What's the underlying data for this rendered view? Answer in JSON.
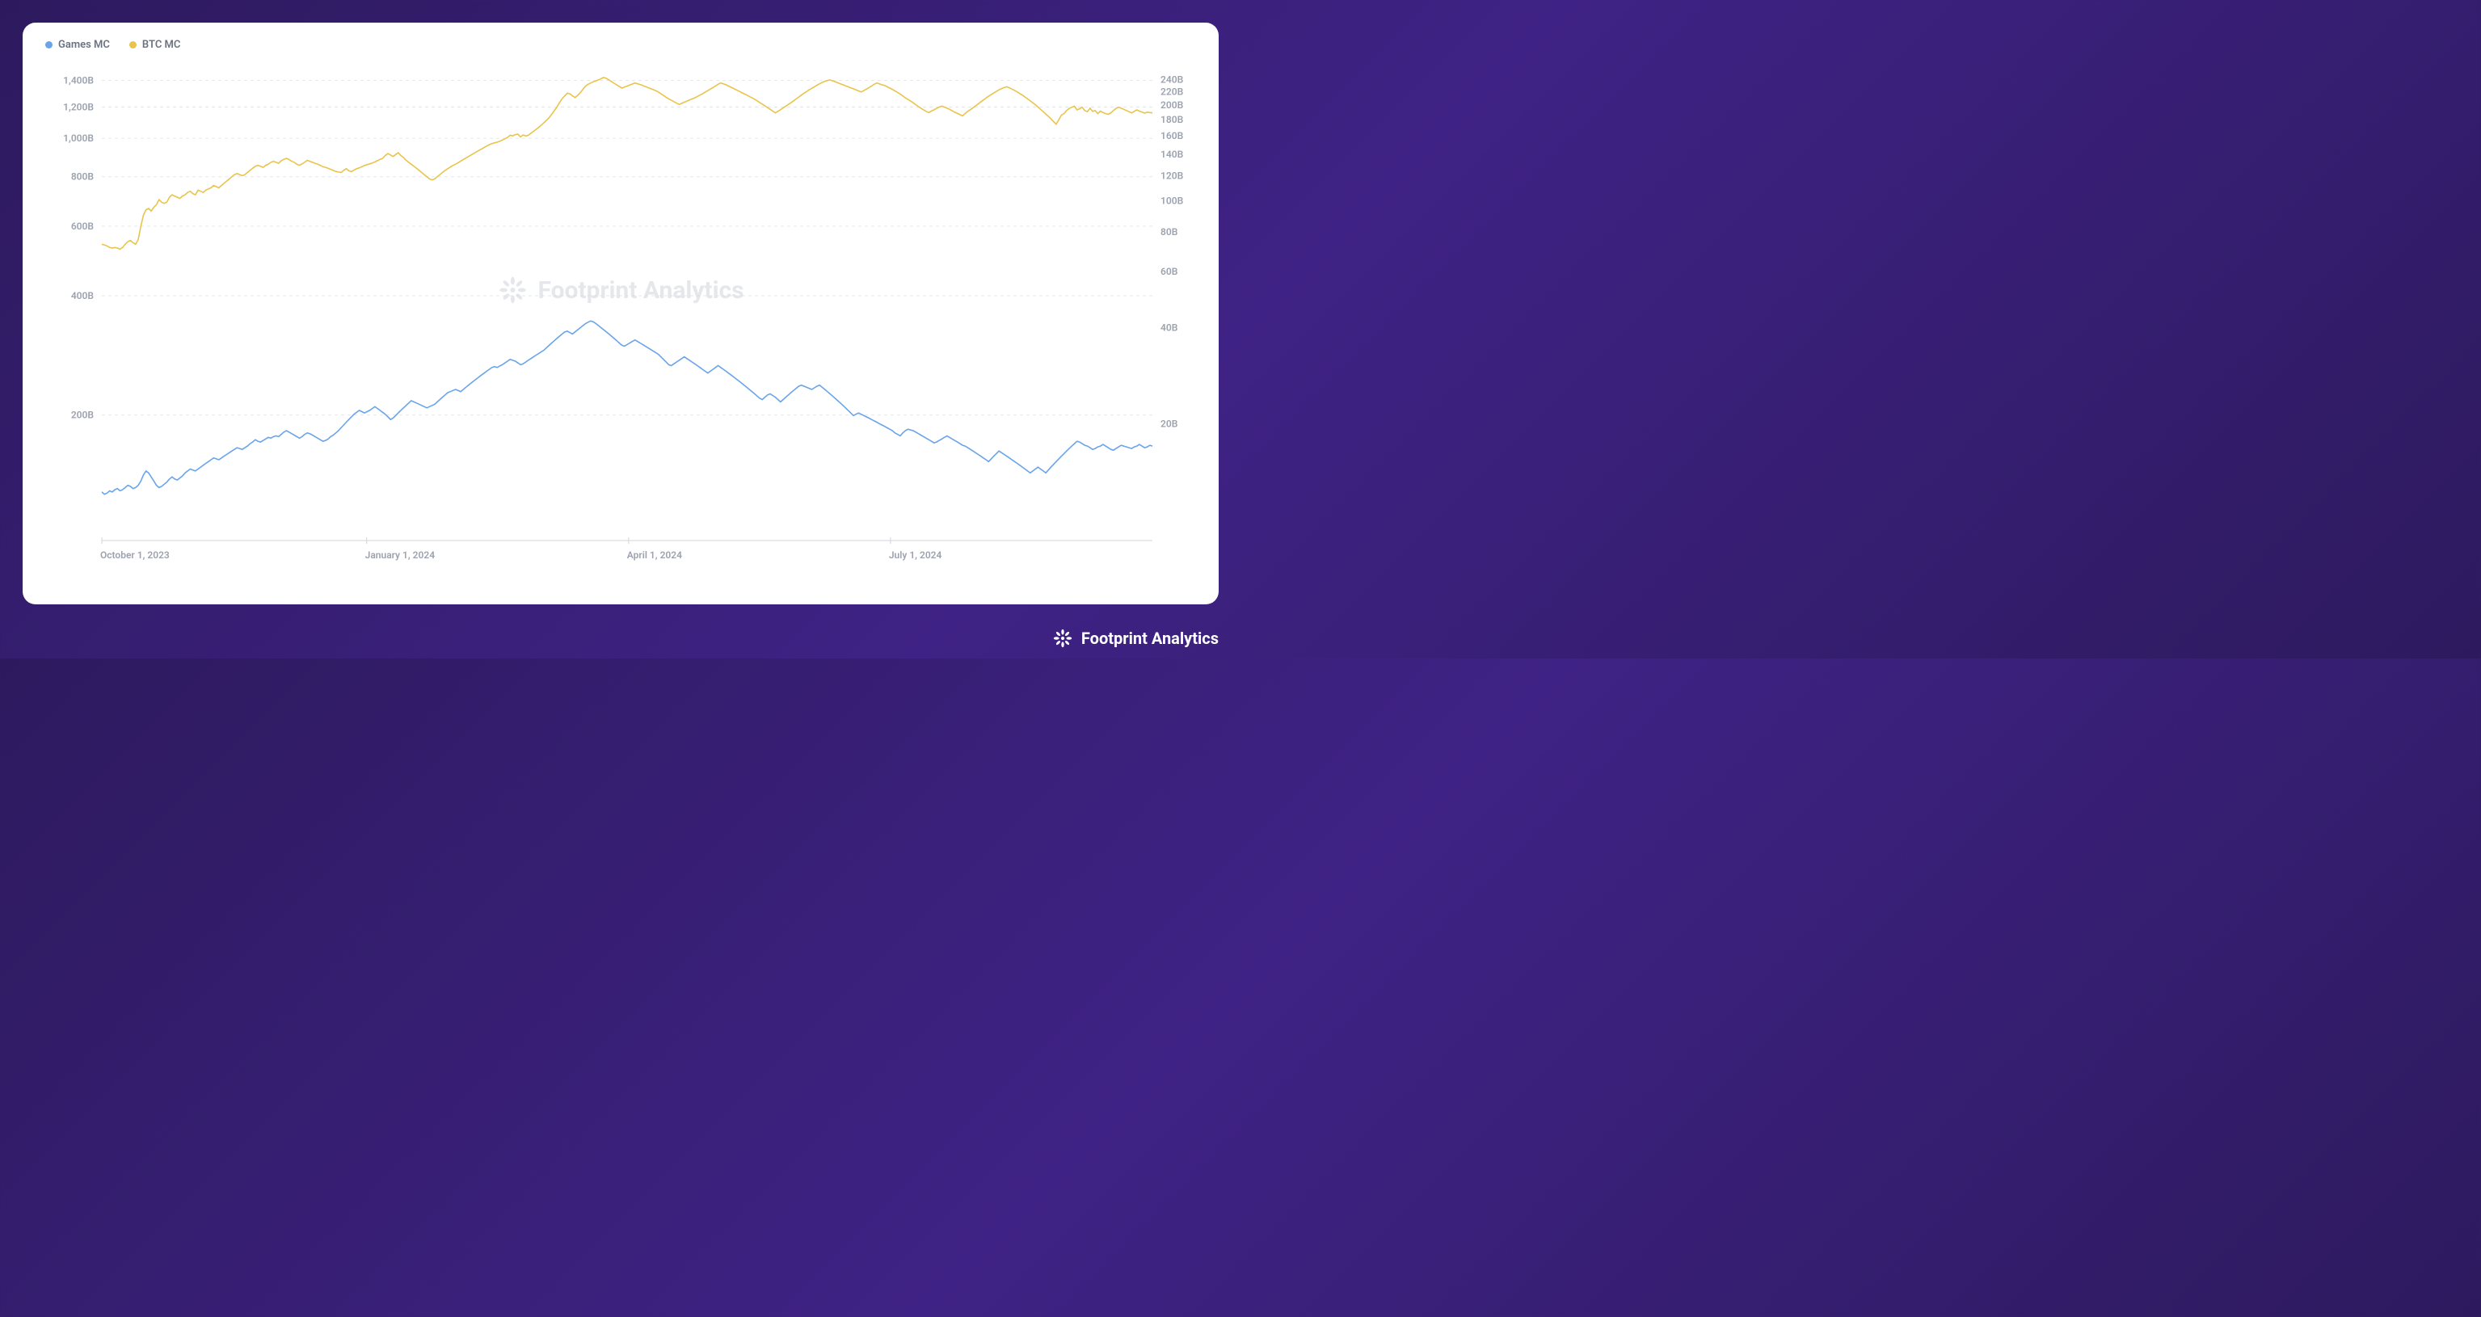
{
  "brand": {
    "name": "Footprint Analytics",
    "logo_color": "#ffffff",
    "watermark_color": "#d1d5db"
  },
  "chart": {
    "type": "line-dual-axis",
    "background_color": "#ffffff",
    "grid_color": "#e5e7eb",
    "axis_color": "#d1d5db",
    "label_color": "#9ca3af",
    "label_fontsize": 12,
    "legend": [
      {
        "label": "Games MC",
        "color": "#6aa4ea"
      },
      {
        "label": "BTC MC",
        "color": "#e9c44c"
      }
    ],
    "left_axis": {
      "scale": "log",
      "min_value": 100,
      "max_value": 1500,
      "ticks": [
        {
          "value": 200,
          "label": "200B"
        },
        {
          "value": 400,
          "label": "400B"
        },
        {
          "value": 600,
          "label": "600B"
        },
        {
          "value": 800,
          "label": "800B"
        },
        {
          "value": 1000,
          "label": "1,000B"
        },
        {
          "value": 1200,
          "label": "1,200B"
        },
        {
          "value": 1400,
          "label": "1,400B"
        }
      ]
    },
    "right_axis": {
      "scale": "log",
      "min_value": 9,
      "max_value": 260,
      "ticks": [
        {
          "value": 20,
          "label": "20B"
        },
        {
          "value": 40,
          "label": "40B"
        },
        {
          "value": 60,
          "label": "60B"
        },
        {
          "value": 80,
          "label": "80B"
        },
        {
          "value": 100,
          "label": "100B"
        },
        {
          "value": 120,
          "label": "120B"
        },
        {
          "value": 140,
          "label": "140B"
        },
        {
          "value": 160,
          "label": "160B"
        },
        {
          "value": 180,
          "label": "180B"
        },
        {
          "value": 200,
          "label": "200B"
        },
        {
          "value": 220,
          "label": "220B"
        },
        {
          "value": 240,
          "label": "240B"
        }
      ]
    },
    "x_axis": {
      "domain": [
        0,
        365
      ],
      "ticks": [
        {
          "t": 0,
          "label": "October 1, 2023"
        },
        {
          "t": 92,
          "label": "January 1, 2024"
        },
        {
          "t": 183,
          "label": "April 1, 2024"
        },
        {
          "t": 274,
          "label": "July 1, 2024"
        }
      ]
    },
    "series": {
      "btc_mc": {
        "axis": "left",
        "color": "#e9c44c",
        "line_width": 1.6,
        "values": [
          540,
          538,
          535,
          530,
          528,
          530,
          528,
          525,
          530,
          540,
          548,
          552,
          545,
          540,
          555,
          600,
          640,
          660,
          665,
          655,
          670,
          680,
          700,
          690,
          685,
          690,
          710,
          720,
          715,
          710,
          705,
          715,
          720,
          730,
          735,
          725,
          720,
          740,
          735,
          730,
          740,
          745,
          750,
          760,
          755,
          750,
          760,
          770,
          780,
          790,
          800,
          810,
          815,
          810,
          805,
          810,
          820,
          830,
          840,
          850,
          855,
          850,
          845,
          855,
          860,
          870,
          875,
          870,
          865,
          878,
          885,
          890,
          884,
          875,
          870,
          860,
          855,
          862,
          870,
          880,
          875,
          870,
          865,
          860,
          855,
          848,
          845,
          840,
          835,
          830,
          825,
          822,
          820,
          830,
          838,
          828,
          824,
          832,
          838,
          842,
          848,
          854,
          858,
          862,
          866,
          872,
          878,
          885,
          890,
          905,
          915,
          908,
          900,
          910,
          920,
          905,
          895,
          880,
          870,
          860,
          850,
          840,
          830,
          820,
          810,
          800,
          790,
          785,
          790,
          800,
          810,
          820,
          830,
          838,
          846,
          854,
          860,
          868,
          876,
          884,
          892,
          900,
          908,
          916,
          924,
          932,
          940,
          948,
          956,
          964,
          970,
          974,
          978,
          983,
          990,
          998,
          1005,
          1018,
          1015,
          1022,
          1025,
          1008,
          1020,
          1014,
          1018,
          1030,
          1042,
          1054,
          1066,
          1080,
          1095,
          1110,
          1128,
          1150,
          1175,
          1200,
          1230,
          1260,
          1280,
          1300,
          1296,
          1280,
          1268,
          1285,
          1305,
          1330,
          1355,
          1370,
          1380,
          1390,
          1397,
          1406,
          1415,
          1425,
          1418,
          1405,
          1392,
          1378,
          1365,
          1352,
          1340,
          1348,
          1356,
          1364,
          1372,
          1380,
          1374,
          1368,
          1360,
          1352,
          1344,
          1336,
          1328,
          1320,
          1310,
          1296,
          1284,
          1270,
          1258,
          1248,
          1238,
          1228,
          1218,
          1226,
          1234,
          1242,
          1250,
          1258,
          1266,
          1276,
          1286,
          1296,
          1308,
          1320,
          1332,
          1344,
          1356,
          1370,
          1380,
          1374,
          1366,
          1356,
          1346,
          1336,
          1326,
          1316,
          1306,
          1296,
          1286,
          1276,
          1266,
          1256,
          1244,
          1232,
          1220,
          1208,
          1196,
          1184,
          1172,
          1160,
          1170,
          1182,
          1194,
          1206,
          1218,
          1230,
          1244,
          1258,
          1272,
          1286,
          1300,
          1312,
          1326,
          1338,
          1350,
          1362,
          1374,
          1384,
          1394,
          1400,
          1405,
          1398,
          1390,
          1382,
          1374,
          1366,
          1358,
          1350,
          1342,
          1334,
          1326,
          1318,
          1310,
          1320,
          1332,
          1344,
          1356,
          1370,
          1380,
          1374,
          1366,
          1360,
          1350,
          1340,
          1330,
          1318,
          1306,
          1294,
          1280,
          1266,
          1254,
          1242,
          1230,
          1216,
          1204,
          1192,
          1180,
          1170,
          1162,
          1172,
          1180,
          1190,
          1200,
          1206,
          1200,
          1192,
          1184,
          1174,
          1164,
          1156,
          1148,
          1140,
          1156,
          1170,
          1182,
          1195,
          1208,
          1222,
          1236,
          1250,
          1264,
          1278,
          1290,
          1302,
          1314,
          1326,
          1336,
          1344,
          1350,
          1342,
          1332,
          1322,
          1310,
          1298,
          1286,
          1272,
          1258,
          1244,
          1230,
          1215,
          1200,
          1184,
          1168,
          1152,
          1136,
          1120,
          1102,
          1086,
          1115,
          1145,
          1155,
          1176,
          1190,
          1198,
          1206,
          1180,
          1188,
          1198,
          1176,
          1168,
          1192,
          1170,
          1175,
          1155,
          1172,
          1162,
          1155,
          1150,
          1160,
          1175,
          1190,
          1198,
          1192,
          1184,
          1176,
          1168,
          1160,
          1170,
          1180,
          1172,
          1165,
          1158,
          1165,
          1162,
          1160
        ]
      },
      "games_mc": {
        "axis": "right",
        "color": "#6aa4ea",
        "line_width": 1.6,
        "values": [
          12.2,
          12.0,
          12.1,
          12.3,
          12.2,
          12.4,
          12.5,
          12.3,
          12.4,
          12.6,
          12.8,
          12.7,
          12.5,
          12.6,
          12.8,
          13.2,
          13.8,
          14.2,
          14.0,
          13.6,
          13.2,
          12.8,
          12.6,
          12.7,
          12.9,
          13.1,
          13.4,
          13.6,
          13.4,
          13.3,
          13.5,
          13.7,
          14.0,
          14.2,
          14.4,
          14.3,
          14.2,
          14.4,
          14.6,
          14.8,
          15.0,
          15.2,
          15.4,
          15.6,
          15.5,
          15.4,
          15.6,
          15.8,
          16.0,
          16.2,
          16.4,
          16.6,
          16.8,
          16.7,
          16.6,
          16.8,
          17.0,
          17.3,
          17.5,
          17.8,
          17.6,
          17.5,
          17.7,
          17.9,
          18.1,
          18.0,
          18.2,
          18.3,
          18.2,
          18.5,
          18.8,
          19.0,
          18.8,
          18.6,
          18.4,
          18.2,
          18.0,
          18.2,
          18.5,
          18.7,
          18.6,
          18.4,
          18.2,
          18.0,
          17.8,
          17.6,
          17.7,
          17.9,
          18.2,
          18.4,
          18.7,
          19.0,
          19.4,
          19.8,
          20.2,
          20.6,
          21.0,
          21.4,
          21.7,
          22.0,
          21.8,
          21.6,
          21.8,
          22.0,
          22.3,
          22.6,
          22.3,
          22.0,
          21.7,
          21.4,
          21.0,
          20.6,
          20.8,
          21.2,
          21.6,
          22.0,
          22.4,
          22.8,
          23.2,
          23.6,
          23.4,
          23.2,
          23.0,
          22.8,
          22.6,
          22.4,
          22.6,
          22.8,
          23.0,
          23.4,
          23.8,
          24.2,
          24.6,
          25.0,
          25.2,
          25.4,
          25.6,
          25.4,
          25.2,
          25.6,
          26.0,
          26.4,
          26.8,
          27.2,
          27.6,
          28.0,
          28.4,
          28.8,
          29.2,
          29.6,
          30.0,
          30.2,
          30.0,
          30.3,
          30.6,
          31.0,
          31.4,
          31.8,
          31.6,
          31.4,
          31.0,
          30.6,
          30.8,
          31.2,
          31.6,
          32.0,
          32.4,
          32.8,
          33.2,
          33.6,
          34.0,
          34.6,
          35.2,
          35.8,
          36.4,
          37.0,
          37.6,
          38.2,
          38.8,
          39.0,
          38.6,
          38.2,
          38.8,
          39.4,
          40.0,
          40.6,
          41.2,
          41.6,
          42.0,
          41.7,
          41.2,
          40.6,
          40.0,
          39.4,
          38.8,
          38.2,
          37.6,
          37.0,
          36.4,
          35.8,
          35.2,
          35.0,
          35.4,
          35.8,
          36.2,
          36.6,
          36.2,
          35.8,
          35.4,
          35.0,
          34.6,
          34.2,
          33.8,
          33.4,
          33.0,
          32.4,
          31.8,
          31.2,
          30.6,
          30.4,
          30.8,
          31.2,
          31.6,
          32.0,
          32.4,
          32.0,
          31.6,
          31.2,
          30.8,
          30.4,
          30.0,
          29.6,
          29.2,
          28.8,
          29.2,
          29.6,
          30.0,
          30.4,
          30.0,
          29.6,
          29.2,
          28.8,
          28.4,
          28.0,
          27.6,
          27.2,
          26.8,
          26.4,
          26.0,
          25.6,
          25.2,
          24.8,
          24.4,
          24.0,
          23.8,
          24.2,
          24.6,
          24.8,
          24.5,
          24.2,
          23.8,
          23.4,
          23.8,
          24.2,
          24.6,
          25.0,
          25.4,
          25.8,
          26.2,
          26.4,
          26.2,
          26.0,
          25.8,
          25.6,
          25.9,
          26.2,
          26.4,
          26.0,
          25.6,
          25.2,
          24.8,
          24.4,
          24.0,
          23.6,
          23.2,
          22.8,
          22.4,
          22.0,
          21.6,
          21.2,
          21.4,
          21.6,
          21.4,
          21.2,
          21.0,
          20.8,
          20.6,
          20.4,
          20.2,
          20.0,
          19.8,
          19.6,
          19.4,
          19.2,
          19.0,
          18.7,
          18.5,
          18.3,
          18.7,
          19.0,
          19.2,
          19.1,
          19.0,
          18.8,
          18.6,
          18.4,
          18.2,
          18.0,
          17.8,
          17.6,
          17.4,
          17.5,
          17.7,
          17.9,
          18.1,
          18.3,
          18.1,
          17.9,
          17.7,
          17.5,
          17.3,
          17.1,
          17.0,
          16.8,
          16.6,
          16.4,
          16.2,
          16.0,
          15.8,
          15.6,
          15.4,
          15.2,
          15.5,
          15.8,
          16.1,
          16.4,
          16.2,
          16.0,
          15.8,
          15.6,
          15.4,
          15.2,
          15.0,
          14.8,
          14.6,
          14.4,
          14.2,
          14.0,
          14.2,
          14.4,
          14.6,
          14.4,
          14.2,
          14.0,
          14.3,
          14.6,
          14.9,
          15.2,
          15.5,
          15.8,
          16.1,
          16.4,
          16.7,
          17.0,
          17.3,
          17.6,
          17.5,
          17.3,
          17.1,
          17.0,
          16.8,
          16.6,
          16.7,
          16.9,
          17.0,
          17.2,
          17.0,
          16.8,
          16.6,
          16.5,
          16.7,
          16.9,
          17.1,
          17.0,
          16.9,
          16.8,
          16.7,
          16.9,
          17.0,
          17.2,
          17.0,
          16.8,
          16.9,
          17.1,
          17.0
        ]
      }
    }
  }
}
